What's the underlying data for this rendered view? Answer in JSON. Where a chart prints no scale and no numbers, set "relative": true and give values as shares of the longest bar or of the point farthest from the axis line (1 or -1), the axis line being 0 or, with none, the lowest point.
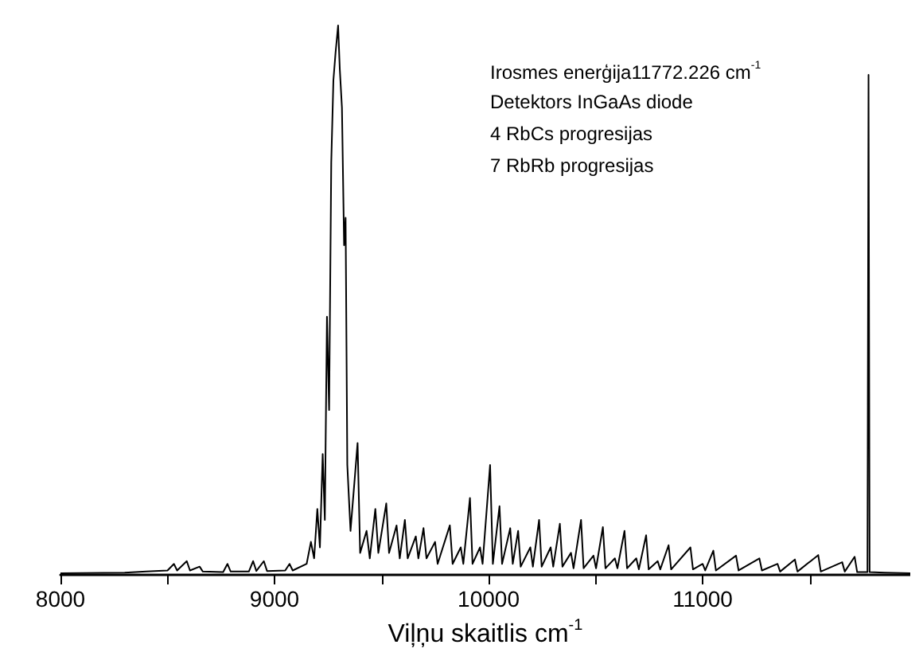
{
  "chart_data": {
    "type": "line",
    "relative": true,
    "xlabel": "Viļņu skaitlis cm$^{-1}$",
    "annotations": [
      "Irosmes enerģija11772.226 cm$^{-1}$",
      "Detektors InGaAs diode",
      "4 RbCs progresijas",
      "7 RbRb progresijas"
    ],
    "xlim": [
      8000,
      11970
    ],
    "xticks": [
      8000,
      {
        "value": 8500,
        "label": null
      },
      9000,
      {
        "value": 9500,
        "label": null
      },
      10000,
      {
        "value": 10500,
        "label": null
      },
      11000,
      {
        "value": 11500,
        "label": null
      }
    ],
    "grid": false,
    "series": [
      {
        "color": "#000000",
        "x": [
          8000,
          8300,
          8400,
          8500,
          8530,
          8545,
          8590,
          8605,
          8650,
          8665,
          8760,
          8780,
          8795,
          8880,
          8900,
          8915,
          8950,
          8965,
          9050,
          9070,
          9085,
          9150,
          9170,
          9185,
          9200,
          9212,
          9225,
          9235,
          9245,
          9255,
          9265,
          9275,
          9285,
          9297,
          9305,
          9315,
          9325,
          9332,
          9340,
          9355,
          9388,
          9400,
          9430,
          9445,
          9471,
          9485,
          9522,
          9535,
          9570,
          9585,
          9609,
          9622,
          9660,
          9672,
          9696,
          9710,
          9750,
          9762,
          9819,
          9832,
          9870,
          9882,
          9913,
          9925,
          9960,
          9972,
          10007,
          10020,
          10051,
          10063,
          10101,
          10113,
          10138,
          10150,
          10195,
          10207,
          10236,
          10248,
          10290,
          10302,
          10333,
          10345,
          10385,
          10397,
          10432,
          10444,
          10490,
          10502,
          10534,
          10546,
          10590,
          10602,
          10635,
          10647,
          10690,
          10702,
          10736,
          10748,
          10790,
          10802,
          10841,
          10853,
          10943,
          10955,
          11000,
          11012,
          11050,
          11062,
          11156,
          11168,
          11265,
          11277,
          11350,
          11362,
          11431,
          11443,
          11540,
          11552,
          11652,
          11664,
          11710,
          11722,
          11770,
          11775,
          11780,
          11850,
          11970
        ],
        "values": [
          0.003,
          0.004,
          0.006,
          0.008,
          0.02,
          0.008,
          0.025,
          0.008,
          0.015,
          0.006,
          0.005,
          0.02,
          0.006,
          0.006,
          0.025,
          0.007,
          0.025,
          0.007,
          0.008,
          0.02,
          0.008,
          0.02,
          0.06,
          0.03,
          0.12,
          0.05,
          0.22,
          0.1,
          0.47,
          0.3,
          0.75,
          0.9,
          0.95,
          1,
          0.92,
          0.85,
          0.6,
          0.65,
          0.2,
          0.08,
          0.24,
          0.04,
          0.08,
          0.03,
          0.12,
          0.04,
          0.13,
          0.04,
          0.09,
          0.03,
          0.1,
          0.03,
          0.07,
          0.03,
          0.085,
          0.03,
          0.06,
          0.02,
          0.09,
          0.02,
          0.05,
          0.02,
          0.14,
          0.02,
          0.05,
          0.02,
          0.2,
          0.02,
          0.125,
          0.02,
          0.085,
          0.02,
          0.08,
          0.015,
          0.05,
          0.015,
          0.1,
          0.015,
          0.05,
          0.015,
          0.093,
          0.015,
          0.04,
          0.012,
          0.1,
          0.012,
          0.035,
          0.012,
          0.087,
          0.012,
          0.03,
          0.012,
          0.08,
          0.012,
          0.03,
          0.01,
          0.072,
          0.01,
          0.025,
          0.01,
          0.054,
          0.01,
          0.05,
          0.01,
          0.02,
          0.008,
          0.044,
          0.008,
          0.035,
          0.008,
          0.03,
          0.008,
          0.02,
          0.006,
          0.028,
          0.006,
          0.036,
          0.006,
          0.023,
          0.006,
          0.033,
          0.005,
          0.005,
          0.91,
          0.005,
          0.004,
          0.003
        ]
      }
    ]
  }
}
